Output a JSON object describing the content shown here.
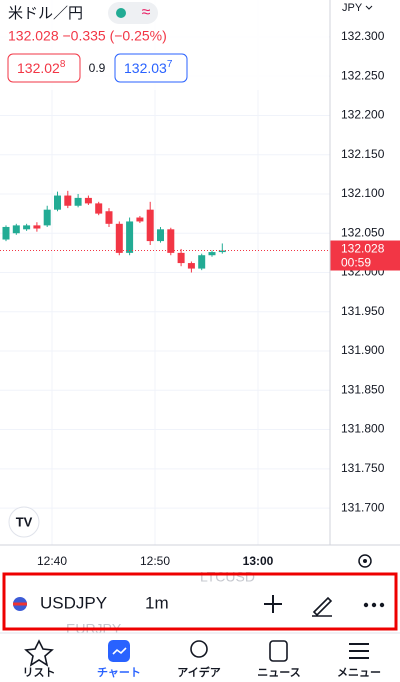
{
  "header": {
    "symbol_name": "米ドル／円",
    "badge": "≈",
    "price_line": "132.028 −0.335 (−0.25%)",
    "bid_main": "132.02",
    "bid_frac": "8",
    "spread": "0.9",
    "ask_main": "132.03",
    "ask_frac": "7",
    "currency": "JPY"
  },
  "chart": {
    "price": 132.028,
    "price_label": "132.028",
    "countdown": "00:59",
    "ylim": [
      131.653,
      132.347
    ],
    "yticks": [
      {
        "value": 132.3,
        "label": "132.300"
      },
      {
        "value": 132.25,
        "label": "132.250"
      },
      {
        "value": 132.2,
        "label": "132.200"
      },
      {
        "value": 132.15,
        "label": "132.150"
      },
      {
        "value": 132.1,
        "label": "132.100"
      },
      {
        "value": 132.05,
        "label": "132.050"
      },
      {
        "value": 132.0,
        "label": "132.000"
      },
      {
        "value": 131.95,
        "label": "131.950"
      },
      {
        "value": 131.9,
        "label": "131.900"
      },
      {
        "value": 131.85,
        "label": "131.850"
      },
      {
        "value": 131.8,
        "label": "131.800"
      },
      {
        "value": 131.75,
        "label": "131.750"
      },
      {
        "value": 131.7,
        "label": "131.700"
      }
    ],
    "xticks": [
      "12:40",
      "12:50",
      "13:00"
    ],
    "candles": [
      [
        132.042,
        132.06,
        132.04,
        132.058
      ],
      [
        132.05,
        132.062,
        132.048,
        132.06
      ],
      [
        132.055,
        132.062,
        132.053,
        132.06
      ],
      [
        132.06,
        132.064,
        132.052,
        132.056
      ],
      [
        132.06,
        132.085,
        132.058,
        132.08
      ],
      [
        132.08,
        132.103,
        132.078,
        132.098
      ],
      [
        132.098,
        132.104,
        132.082,
        132.085
      ],
      [
        132.085,
        132.1,
        132.083,
        132.095
      ],
      [
        132.095,
        132.098,
        132.086,
        132.088
      ],
      [
        132.088,
        132.09,
        132.073,
        132.075
      ],
      [
        132.078,
        132.082,
        132.058,
        132.062
      ],
      [
        132.062,
        132.065,
        132.022,
        132.025
      ],
      [
        132.025,
        132.07,
        132.022,
        132.065
      ],
      [
        132.07,
        132.072,
        132.063,
        132.065
      ],
      [
        132.08,
        132.09,
        132.035,
        132.04
      ],
      [
        132.04,
        132.058,
        132.038,
        132.055
      ],
      [
        132.055,
        132.057,
        132.022,
        132.025
      ],
      [
        132.025,
        132.03,
        132.008,
        132.012
      ],
      [
        132.012,
        132.014,
        132.0,
        132.005
      ],
      [
        132.005,
        132.024,
        132.003,
        132.022
      ],
      [
        132.022,
        132.028,
        132.02,
        132.026
      ],
      [
        132.026,
        132.037,
        132.024,
        132.028
      ]
    ]
  },
  "toolbar": {
    "ghost_top": "LTCUSD",
    "symbol": "USDJPY",
    "interval": "1m",
    "ghost_bottom": "EURJPY"
  },
  "nav": [
    "リスト",
    "チャート",
    "アイデア",
    "ニュース",
    "メニュー"
  ]
}
